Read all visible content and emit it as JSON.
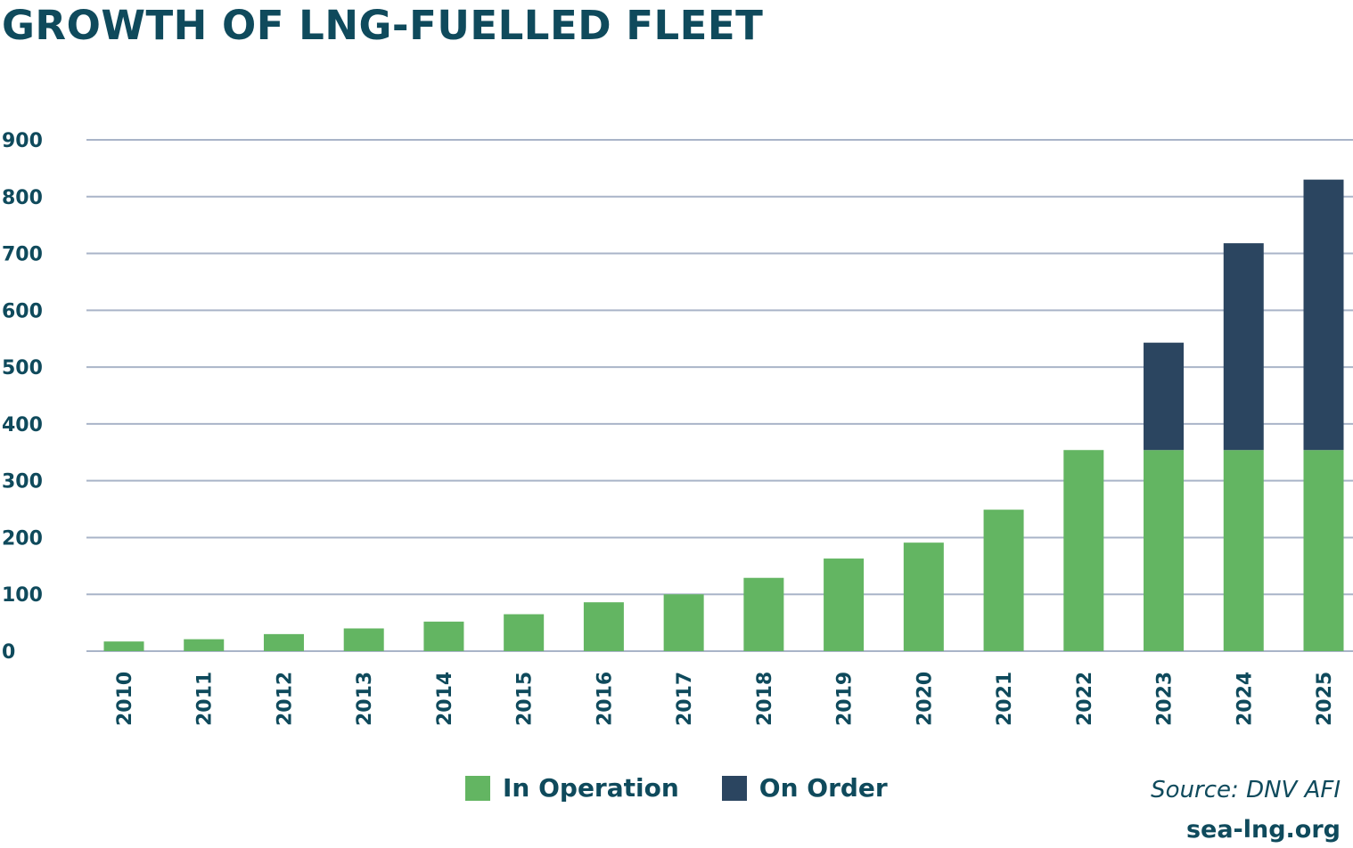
{
  "chart_data": {
    "type": "bar",
    "stacked": true,
    "title": "GROWTH OF LNG-FUELLED FLEET",
    "xlabel": "",
    "ylabel": "",
    "categories": [
      "2010",
      "2011",
      "2012",
      "2013",
      "2014",
      "2015",
      "2016",
      "2017",
      "2018",
      "2019",
      "2020",
      "2021",
      "2022",
      "2023",
      "2024",
      "2025"
    ],
    "series": [
      {
        "name": "In Operation",
        "color": "#63b562",
        "values": [
          17,
          21,
          30,
          40,
          52,
          65,
          86,
          100,
          129,
          163,
          191,
          249,
          354,
          354,
          354,
          354
        ]
      },
      {
        "name": "On Order",
        "color": "#2b4560",
        "values": [
          0,
          0,
          0,
          0,
          0,
          0,
          0,
          0,
          0,
          0,
          0,
          0,
          0,
          189,
          364,
          476
        ]
      }
    ],
    "ylim": [
      0,
      900
    ],
    "yticks": [
      0,
      100,
      200,
      300,
      400,
      500,
      600,
      700,
      800,
      900
    ],
    "grid": true,
    "legend_position": "bottom"
  },
  "footer": {
    "source": "Source: DNV AFI",
    "site": "sea-lng.org"
  }
}
